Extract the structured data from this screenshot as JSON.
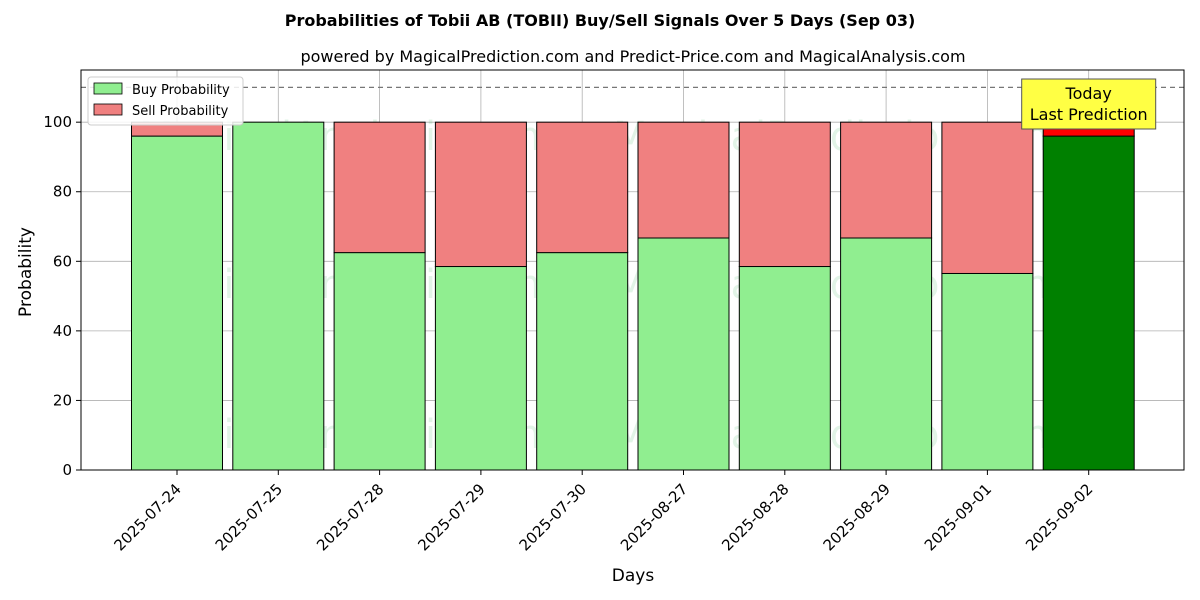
{
  "chart_data": {
    "type": "bar",
    "stacked": true,
    "title": "Probabilities of Tobii AB (TOBII) Buy/Sell Signals Over 5 Days (Sep 03)",
    "subtitle": "powered by MagicalPrediction.com and Predict-Price.com and MagicalAnalysis.com",
    "xlabel": "Days",
    "ylabel": "Probability",
    "ylim": [
      0,
      115
    ],
    "yticks": [
      0,
      20,
      40,
      60,
      80,
      100
    ],
    "reference_line": 110,
    "grid": true,
    "legend_position": "top-left",
    "categories": [
      "2025-07-24",
      "2025-07-25",
      "2025-07-28",
      "2025-07-29",
      "2025-07-30",
      "2025-08-27",
      "2025-08-28",
      "2025-08-29",
      "2025-09-01",
      "2025-09-02"
    ],
    "series": [
      {
        "name": "Buy Probability",
        "values": [
          96,
          100,
          62.5,
          58.5,
          62.5,
          66.7,
          58.5,
          66.7,
          56.5,
          96
        ]
      },
      {
        "name": "Sell Probability",
        "values": [
          4,
          0,
          37.5,
          41.5,
          37.5,
          33.3,
          41.5,
          33.3,
          43.5,
          4
        ]
      }
    ],
    "colors": {
      "buy": "#90ee90",
      "sell": "#f08080",
      "buy_highlight": "#008000",
      "sell_highlight": "#ff0000",
      "annotation_bg": "#ffff44"
    },
    "annotation": {
      "lines": [
        "Today",
        "Last Prediction"
      ]
    },
    "watermarks": [
      "MagicalAnalysis.com",
      "MagicalPrediction.com"
    ]
  }
}
